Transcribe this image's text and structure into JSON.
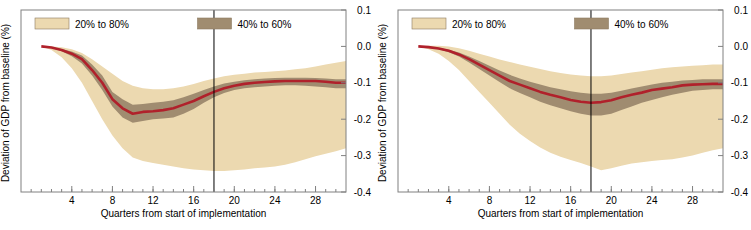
{
  "chart_data": [
    {
      "type": "line",
      "x_label": "Quarters from start of implementation",
      "y_label": "Deviation of GDP from baseline (%)",
      "x": [
        1,
        2,
        3,
        4,
        5,
        6,
        7,
        8,
        9,
        10,
        11,
        12,
        13,
        14,
        15,
        16,
        17,
        18,
        19,
        20,
        21,
        22,
        23,
        24,
        25,
        26,
        27,
        28,
        29,
        30,
        31
      ],
      "xlim": [
        -1,
        31
      ],
      "xticks": [
        4,
        8,
        12,
        16,
        20,
        24,
        28
      ],
      "xminor_ticks": [
        0,
        1,
        2,
        3,
        4,
        5,
        6,
        7,
        8,
        9,
        10,
        11,
        12,
        13,
        14,
        15,
        16,
        17,
        18,
        19,
        20,
        21,
        22,
        23,
        24,
        25,
        26,
        27,
        28,
        29,
        30
      ],
      "ylim": [
        -0.4,
        0.1
      ],
      "yticks": [
        0.1,
        {
          "value": 0,
          "label": "0.0"
        },
        -0.1,
        -0.2,
        -0.3,
        -0.4
      ],
      "reference_x": 18,
      "grid": false,
      "legend": "top",
      "series": [
        {
          "name": "20% to 80%",
          "type": "band",
          "color": "#ecd9b0",
          "lower": [
            0,
            -0.01,
            -0.03,
            -0.06,
            -0.1,
            -0.15,
            -0.2,
            -0.245,
            -0.28,
            -0.305,
            -0.315,
            -0.32,
            -0.325,
            -0.33,
            -0.335,
            -0.338,
            -0.34,
            -0.342,
            -0.342,
            -0.34,
            -0.338,
            -0.335,
            -0.333,
            -0.33,
            -0.325,
            -0.318,
            -0.31,
            -0.302,
            -0.295,
            -0.288,
            -0.28
          ],
          "upper": [
            0,
            0,
            -0.002,
            -0.008,
            -0.018,
            -0.035,
            -0.055,
            -0.075,
            -0.095,
            -0.108,
            -0.115,
            -0.118,
            -0.118,
            -0.115,
            -0.11,
            -0.103,
            -0.095,
            -0.088,
            -0.082,
            -0.078,
            -0.075,
            -0.072,
            -0.07,
            -0.068,
            -0.066,
            -0.063,
            -0.06,
            -0.055,
            -0.05,
            -0.045,
            -0.04
          ]
        },
        {
          "name": "40% to 60%",
          "type": "band",
          "color": "#a08c70",
          "lower": [
            0,
            -0.004,
            -0.013,
            -0.027,
            -0.047,
            -0.08,
            -0.12,
            -0.165,
            -0.195,
            -0.21,
            -0.205,
            -0.2,
            -0.198,
            -0.195,
            -0.185,
            -0.172,
            -0.155,
            -0.14,
            -0.128,
            -0.12,
            -0.115,
            -0.112,
            -0.11,
            -0.108,
            -0.107,
            -0.107,
            -0.108,
            -0.11,
            -0.112,
            -0.115,
            -0.115
          ],
          "upper": [
            0,
            -0.002,
            -0.007,
            -0.014,
            -0.025,
            -0.05,
            -0.08,
            -0.125,
            -0.145,
            -0.16,
            -0.158,
            -0.155,
            -0.152,
            -0.148,
            -0.14,
            -0.13,
            -0.12,
            -0.11,
            -0.102,
            -0.097,
            -0.093,
            -0.09,
            -0.088,
            -0.087,
            -0.086,
            -0.086,
            -0.086,
            -0.087,
            -0.088,
            -0.09,
            -0.09
          ]
        },
        {
          "type": "line",
          "color": "#b0212b",
          "values": [
            0,
            -0.003,
            -0.01,
            -0.02,
            -0.035,
            -0.065,
            -0.1,
            -0.145,
            -0.17,
            -0.185,
            -0.18,
            -0.178,
            -0.175,
            -0.17,
            -0.16,
            -0.15,
            -0.137,
            -0.125,
            -0.115,
            -0.108,
            -0.103,
            -0.1,
            -0.098,
            -0.096,
            -0.095,
            -0.095,
            -0.095,
            -0.095,
            -0.097,
            -0.1,
            -0.1
          ]
        }
      ]
    },
    {
      "type": "line",
      "x_label": "Quarters from start of implementation",
      "y_label": "Deviation of GDP from baseline (%)",
      "x": [
        1,
        2,
        3,
        4,
        5,
        6,
        7,
        8,
        9,
        10,
        11,
        12,
        13,
        14,
        15,
        16,
        17,
        18,
        19,
        20,
        21,
        22,
        23,
        24,
        25,
        26,
        27,
        28,
        29,
        30,
        31
      ],
      "xlim": [
        -1,
        31
      ],
      "xticks": [
        4,
        8,
        12,
        16,
        20,
        24,
        28
      ],
      "xminor_ticks": [
        0,
        1,
        2,
        3,
        4,
        5,
        6,
        7,
        8,
        9,
        10,
        11,
        12,
        13,
        14,
        15,
        16,
        17,
        18,
        19,
        20,
        21,
        22,
        23,
        24,
        25,
        26,
        27,
        28,
        29,
        30
      ],
      "ylim": [
        -0.4,
        0.1
      ],
      "yticks": [
        0.1,
        {
          "value": 0,
          "label": "0.0"
        },
        -0.1,
        -0.2,
        -0.3,
        -0.4
      ],
      "reference_x": 18,
      "grid": false,
      "legend": "top",
      "series": [
        {
          "name": "20% to 80%",
          "type": "band",
          "color": "#ecd9b0",
          "lower": [
            0,
            -0.008,
            -0.02,
            -0.04,
            -0.065,
            -0.095,
            -0.125,
            -0.155,
            -0.185,
            -0.215,
            -0.24,
            -0.26,
            -0.278,
            -0.292,
            -0.303,
            -0.312,
            -0.32,
            -0.33,
            -0.34,
            -0.335,
            -0.328,
            -0.322,
            -0.318,
            -0.315,
            -0.312,
            -0.31,
            -0.305,
            -0.3,
            -0.292,
            -0.285,
            -0.28
          ],
          "upper": [
            0,
            0.002,
            0.002,
            0,
            -0.005,
            -0.012,
            -0.02,
            -0.028,
            -0.036,
            -0.043,
            -0.05,
            -0.056,
            -0.062,
            -0.068,
            -0.073,
            -0.077,
            -0.08,
            -0.082,
            -0.082,
            -0.08,
            -0.076,
            -0.072,
            -0.068,
            -0.064,
            -0.06,
            -0.057,
            -0.055,
            -0.053,
            -0.052,
            -0.05,
            -0.05
          ]
        },
        {
          "name": "40% to 60%",
          "type": "band",
          "color": "#a08c70",
          "lower": [
            0,
            -0.003,
            -0.008,
            -0.016,
            -0.028,
            -0.044,
            -0.062,
            -0.08,
            -0.098,
            -0.115,
            -0.128,
            -0.14,
            -0.152,
            -0.162,
            -0.17,
            -0.178,
            -0.185,
            -0.19,
            -0.19,
            -0.185,
            -0.175,
            -0.165,
            -0.155,
            -0.147,
            -0.14,
            -0.133,
            -0.127,
            -0.122,
            -0.12,
            -0.118,
            -0.118
          ],
          "upper": [
            0,
            -0.001,
            -0.004,
            -0.009,
            -0.017,
            -0.028,
            -0.04,
            -0.053,
            -0.066,
            -0.078,
            -0.088,
            -0.097,
            -0.105,
            -0.112,
            -0.118,
            -0.123,
            -0.127,
            -0.13,
            -0.13,
            -0.127,
            -0.122,
            -0.116,
            -0.11,
            -0.105,
            -0.1,
            -0.097,
            -0.094,
            -0.092,
            -0.09,
            -0.09,
            -0.09
          ]
        },
        {
          "type": "line",
          "color": "#b0212b",
          "values": [
            0,
            -0.002,
            -0.006,
            -0.012,
            -0.022,
            -0.035,
            -0.05,
            -0.065,
            -0.08,
            -0.095,
            -0.105,
            -0.115,
            -0.125,
            -0.133,
            -0.14,
            -0.147,
            -0.152,
            -0.155,
            -0.153,
            -0.148,
            -0.14,
            -0.133,
            -0.127,
            -0.12,
            -0.116,
            -0.112,
            -0.107,
            -0.105,
            -0.104,
            -0.103,
            -0.103
          ]
        }
      ]
    }
  ]
}
